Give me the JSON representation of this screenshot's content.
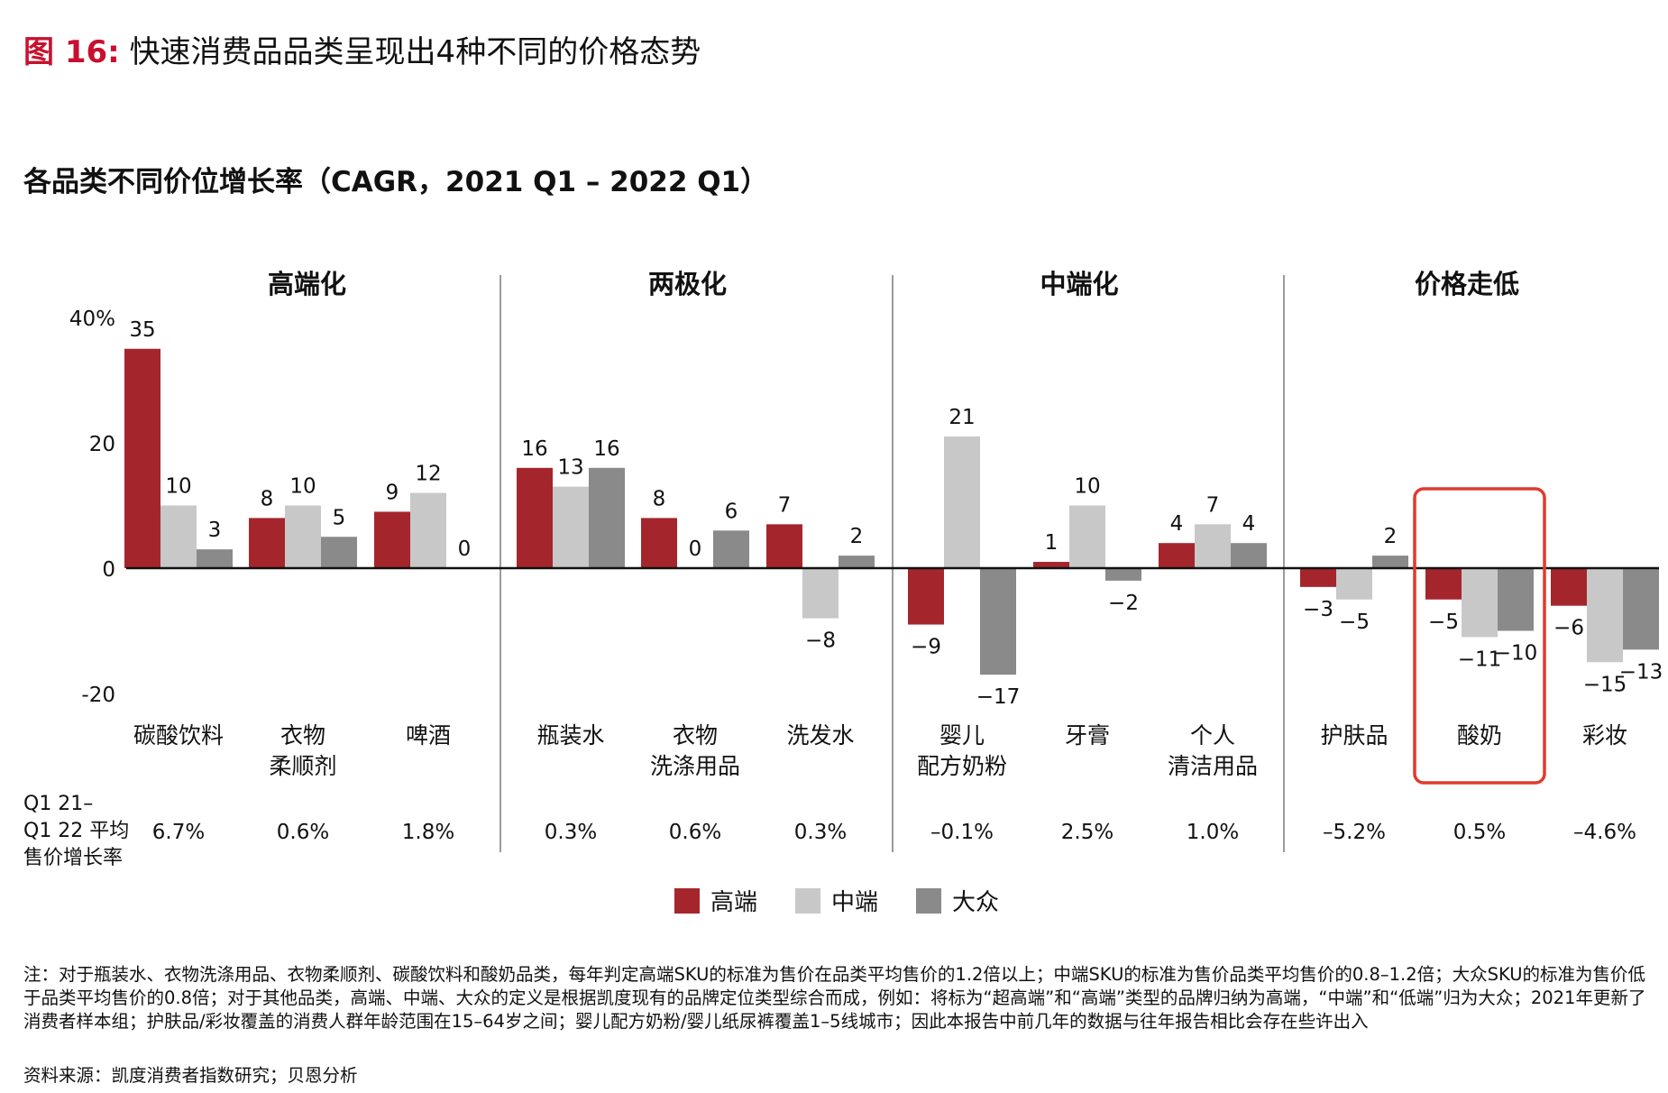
{
  "figure_label": "图 16:",
  "figure_title": "快速消费品品类呈现出4种不同的价格态势",
  "subtitle": "各品类不同价位增长率（CAGR，2021 Q1 – 2022 Q1）",
  "chart_data": {
    "type": "bar",
    "groups": [
      "高端化",
      "两极化",
      "中端化",
      "价格走低"
    ],
    "categories": [
      "碳酸饮料",
      "衣物\n柔顺剂",
      "啤酒",
      "瓶装水",
      "衣物\n洗涤用品",
      "洗发水",
      "婴儿\n配方奶粉",
      "牙膏",
      "个人\n清洁用品",
      "护肤品",
      "酸奶",
      "彩妆"
    ],
    "series": [
      {
        "name": "高端",
        "color": "#a4262c",
        "values": [
          35,
          8,
          9,
          16,
          8,
          7,
          -9,
          1,
          4,
          -3,
          -5,
          -6
        ]
      },
      {
        "name": "中端",
        "color": "#c8c8c8",
        "values": [
          10,
          10,
          12,
          13,
          0,
          -8,
          21,
          10,
          7,
          -5,
          -11,
          -15
        ]
      },
      {
        "name": "大众",
        "color": "#8a8a8a",
        "values": [
          3,
          5,
          0,
          16,
          6,
          2,
          -17,
          -2,
          4,
          2,
          -10,
          -13
        ]
      }
    ],
    "ytick_labels": [
      "40%",
      "20",
      "0",
      "-20"
    ],
    "ytick_values": [
      40,
      20,
      0,
      -20
    ],
    "ylim": [
      -20,
      40
    ],
    "row_label": "Q1 21–\nQ1 22 平均\n售价增长率",
    "avg_price_growth": [
      "6.7%",
      "0.6%",
      "1.8%",
      "0.3%",
      "0.6%",
      "0.3%",
      "–0.1%",
      "2.5%",
      "1.0%",
      "–5.2%",
      "0.5%",
      "–4.6%"
    ],
    "highlight_category": "酸奶",
    "highlight_color": "#e03a2e"
  },
  "footnote": "注：对于瓶装水、衣物洗涤用品、衣物柔顺剂、碳酸饮料和酸奶品类，每年判定高端SKU的标准为售价在品类平均售价的1.2倍以上；中端SKU的标准为售价品类平均售价的0.8–1.2倍；大众SKU的标准为售价低于品类平均售价的0.8倍；对于其他品类，高端、中端、大众的定义是根据凯度现有的品牌定位类型综合而成，例如：将标为“超高端”和“高端”类型的品牌归纳为高端，“中端”和“低端”归为大众；2021年更新了消费者样本组；护肤品/彩妆覆盖的消费人群年龄范围在15–64岁之间；婴儿配方奶粉/婴儿纸尿裤覆盖1–5线城市；因此本报告中前几年的数据与往年报告相比会存在些许出入",
  "source": "资料来源：凯度消费者指数研究；贝恩分析"
}
